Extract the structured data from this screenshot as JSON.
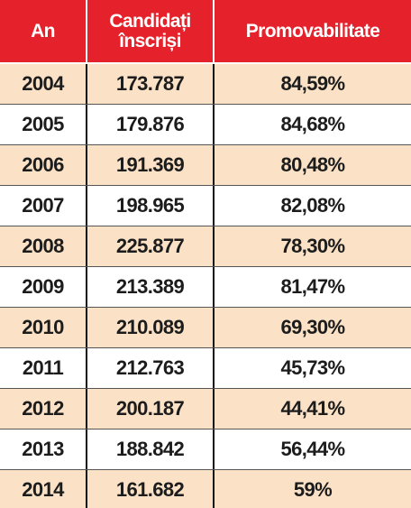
{
  "table": {
    "header": [
      "An",
      [
        "Candidați",
        "înscriși"
      ],
      "Promovabilitate"
    ],
    "rows": [
      [
        "2004",
        "173.787",
        "84,59%"
      ],
      [
        "2005",
        "179.876",
        "84,68%"
      ],
      [
        "2006",
        "191.369",
        "80,48%"
      ],
      [
        "2007",
        "198.965",
        "82,08%"
      ],
      [
        "2008",
        "225.877",
        "78,30%"
      ],
      [
        "2009",
        "213.389",
        "81,47%"
      ],
      [
        "2010",
        "210.089",
        "69,30%"
      ],
      [
        "2011",
        "212.763",
        "45,73%"
      ],
      [
        "2012",
        "200.187",
        "44,41%"
      ],
      [
        "2013",
        "188.842",
        "56,44%"
      ],
      [
        "2014",
        "161.682",
        "59%"
      ]
    ]
  }
}
